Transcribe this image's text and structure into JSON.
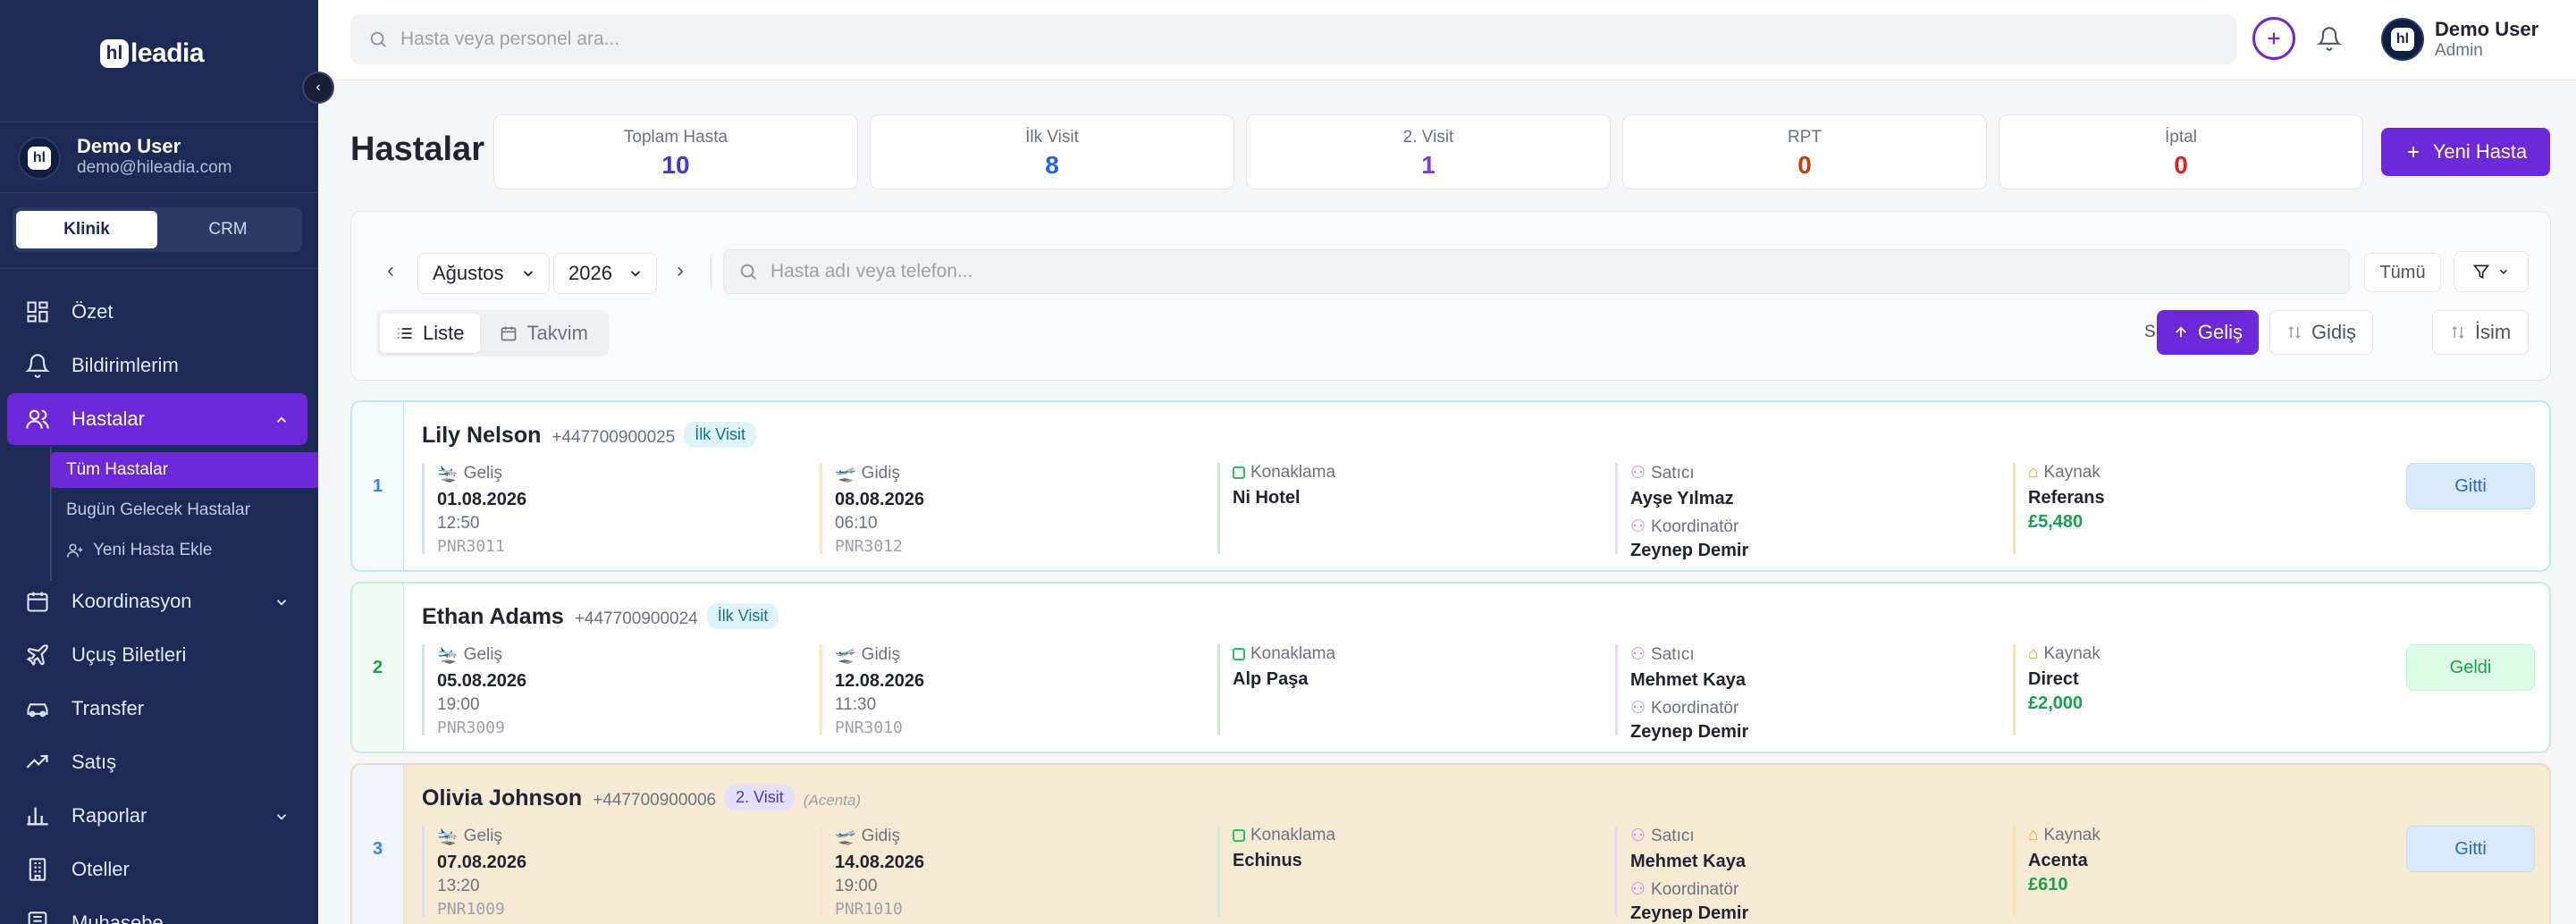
{
  "sidebar": {
    "logo_mark": "hl",
    "logo_text": "leadia",
    "user": {
      "name": "Demo User",
      "email": "demo@hileadia.com"
    },
    "segment": [
      "Klinik",
      "CRM"
    ],
    "nav": [
      {
        "label": "Özet",
        "icon": "grid-icon"
      },
      {
        "label": "Bildirimlerim",
        "icon": "bell-icon"
      },
      {
        "label": "Hastalar",
        "icon": "users-icon"
      },
      {
        "label": "Koordinasyon",
        "icon": "calendar-icon"
      },
      {
        "label": "Uçuş Biletleri",
        "icon": "plane-icon"
      },
      {
        "label": "Transfer",
        "icon": "car-icon"
      },
      {
        "label": "Satış",
        "icon": "trend-icon"
      },
      {
        "label": "Raporlar",
        "icon": "bar-chart-icon"
      },
      {
        "label": "Oteller",
        "icon": "building-icon"
      },
      {
        "label": "Muhasebe",
        "icon": "ledger-icon"
      }
    ],
    "sub": [
      "Tüm Hastalar",
      "Bugün Gelecek Hastalar",
      "Yeni Hasta Ekle"
    ]
  },
  "topbar": {
    "search_placeholder": "Hasta veya personel ara...",
    "user": {
      "name": "Demo User",
      "role": "Admin"
    }
  },
  "page": {
    "title": "Hastalar",
    "new_button": "Yeni Hasta",
    "stats": [
      {
        "label": "Toplam Hasta",
        "value": "10",
        "color": "#4338ca"
      },
      {
        "label": "İlk Visit",
        "value": "8",
        "color": "#2563eb"
      },
      {
        "label": "2. Visit",
        "value": "1",
        "color": "#7c3aed"
      },
      {
        "label": "RPT",
        "value": "0",
        "color": "#c2410c"
      },
      {
        "label": "İptal",
        "value": "0",
        "color": "#dc2626"
      }
    ]
  },
  "filters": {
    "month": "Ağustos",
    "year": "2026",
    "search_placeholder": "Hasta adı veya telefon...",
    "all_label": "Tümü",
    "views": [
      "Liste",
      "Takvim"
    ],
    "sort_label": "Sırala:",
    "sorts": [
      "Geliş",
      "Gidiş",
      "İsim"
    ]
  },
  "labels": {
    "arrival": "Geliş",
    "departure": "Gidiş",
    "accommodation": "Konaklama",
    "seller": "Satıcı",
    "coordinator": "Koordinatör",
    "source": "Kaynak"
  },
  "patients": [
    {
      "index": "1",
      "name": "Lily Nelson",
      "phone": "+447700900025",
      "badge": "İlk Visit",
      "acenta": "",
      "arrival_date": "01.08.2026",
      "arrival_time": "12:50",
      "arrival_pnr": "PNR3011",
      "departure_date": "08.08.2026",
      "departure_time": "06:10",
      "departure_pnr": "PNR3012",
      "hotel": "Ni Hotel",
      "seller": "Ayşe Yılmaz",
      "coordinator": "Zeynep Demir",
      "source": "Referans",
      "amount": "£5,480",
      "status": "Gitti"
    },
    {
      "index": "2",
      "name": "Ethan Adams",
      "phone": "+447700900024",
      "badge": "İlk Visit",
      "acenta": "",
      "arrival_date": "05.08.2026",
      "arrival_time": "19:00",
      "arrival_pnr": "PNR3009",
      "departure_date": "12.08.2026",
      "departure_time": "11:30",
      "departure_pnr": "PNR3010",
      "hotel": "Alp Paşa",
      "seller": "Mehmet Kaya",
      "coordinator": "Zeynep Demir",
      "source": "Direct",
      "amount": "£2,000",
      "status": "Geldi"
    },
    {
      "index": "3",
      "name": "Olivia Johnson",
      "phone": "+447700900006",
      "badge": "2. Visit",
      "acenta": "(Acenta)",
      "arrival_date": "07.08.2026",
      "arrival_time": "13:20",
      "arrival_pnr": "PNR1009",
      "departure_date": "14.08.2026",
      "departure_time": "19:00",
      "departure_pnr": "PNR1010",
      "hotel": "Echinus",
      "seller": "Mehmet Kaya",
      "coordinator": "Zeynep Demir",
      "source": "Acenta",
      "amount": "£610",
      "status": "Gitti"
    }
  ]
}
